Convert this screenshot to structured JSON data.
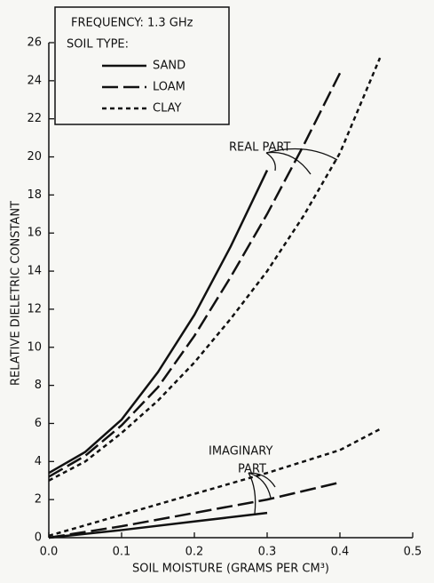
{
  "chart_data": {
    "type": "line",
    "legend_title": "FREQUENCY: 1.3 GHz",
    "legend_subtitle": "SOIL TYPE:",
    "xlabel": "SOIL MOISTURE (GRAMS PER CM³)",
    "ylabel": "RELATIVE DIELETRIC CONSTANT",
    "annotations": [
      "REAL PART",
      "IMAGINARY",
      "PART"
    ],
    "xlim": [
      0,
      0.5
    ],
    "ylim": [
      0,
      26
    ],
    "xticks": [
      {
        "value": 0,
        "label": "0.0"
      },
      0.1,
      0.2,
      0.3,
      0.4,
      0.5
    ],
    "yticks": [
      0,
      2,
      4,
      6,
      8,
      10,
      12,
      14,
      16,
      18,
      20,
      22,
      24,
      26
    ],
    "color": "#111111",
    "series": [
      {
        "name": "SAND",
        "dash": "solid",
        "x": [
          0,
          0.05,
          0.1,
          0.15,
          0.2,
          0.25,
          0.3
        ],
        "values": [
          3.4,
          4.5,
          6.2,
          8.7,
          11.7,
          15.3,
          19.3
        ]
      },
      {
        "name": "LOAM",
        "dash": "long",
        "x": [
          0,
          0.05,
          0.1,
          0.15,
          0.2,
          0.25,
          0.3,
          0.35,
          0.4
        ],
        "values": [
          3.2,
          4.3,
          5.9,
          7.9,
          10.6,
          13.7,
          17.0,
          20.6,
          24.4
        ]
      },
      {
        "name": "CLAY",
        "dash": "short",
        "x": [
          0,
          0.05,
          0.1,
          0.15,
          0.2,
          0.25,
          0.3,
          0.35,
          0.4,
          0.455
        ],
        "values": [
          3.0,
          4.0,
          5.5,
          7.2,
          9.2,
          11.5,
          14.0,
          16.9,
          20.2,
          25.2
        ]
      },
      {
        "dash": "solid",
        "x": [
          0,
          0.1,
          0.2,
          0.3
        ],
        "values": [
          0,
          0.4,
          0.85,
          1.3
        ]
      },
      {
        "dash": "long",
        "x": [
          0,
          0.1,
          0.2,
          0.3,
          0.4
        ],
        "values": [
          0,
          0.6,
          1.3,
          2.0,
          2.9
        ]
      },
      {
        "dash": "short",
        "x": [
          0,
          0.1,
          0.2,
          0.3,
          0.4,
          0.455
        ],
        "values": [
          0.1,
          1.2,
          2.3,
          3.4,
          4.6,
          5.7
        ]
      }
    ]
  }
}
